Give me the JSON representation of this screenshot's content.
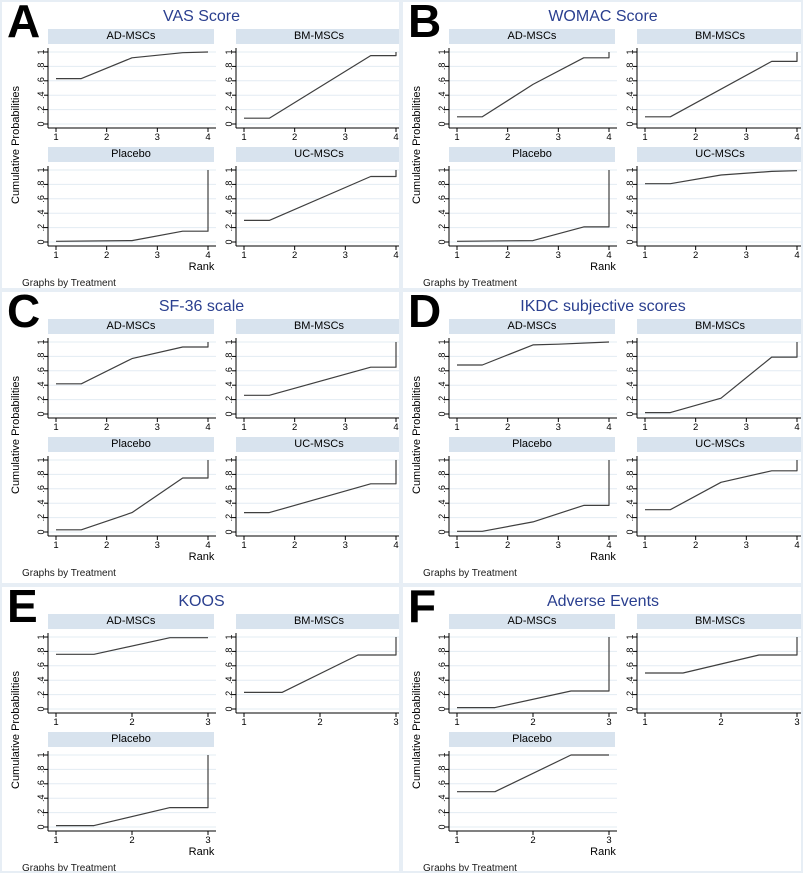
{
  "note": "Graphs by Treatment",
  "axis": {
    "y_label": "Cumulative Probabilities",
    "x_label": "Rank",
    "y_ticks": [
      0,
      0.2,
      0.4,
      0.6,
      0.8,
      1
    ],
    "y_tick_labels": [
      "0",
      ".2",
      ".4",
      ".6",
      ".8",
      "1"
    ],
    "ylim": [
      0,
      1
    ],
    "grid": "horizontal"
  },
  "colors": {
    "title_text": "#2a3f8f",
    "subplot_header_bg": "#d8e3ee",
    "gridline": "#e3ecf3",
    "curve": "#3f3f3f",
    "axis": "#000000",
    "panel_border": "#e7eef5"
  },
  "chart_data": [
    {
      "panel": "A",
      "title": "VAS Score",
      "type": "line",
      "xlabel": "Rank",
      "ylabel": "Cumulative Probabilities",
      "ylim": [
        0,
        1
      ],
      "ranks": [
        1,
        2,
        3,
        4
      ],
      "treatments": [
        {
          "name": "AD-MSCs",
          "points": [
            [
              1,
              0.63
            ],
            [
              1.5,
              0.63
            ],
            [
              2.5,
              0.92
            ],
            [
              3.5,
              0.99
            ],
            [
              4,
              1.0
            ]
          ]
        },
        {
          "name": "BM-MSCs",
          "points": [
            [
              1,
              0.08
            ],
            [
              1.5,
              0.08
            ],
            [
              3.5,
              0.95
            ],
            [
              4,
              0.95
            ],
            [
              4,
              1.0
            ]
          ]
        },
        {
          "name": "Placebo",
          "points": [
            [
              1,
              0.01
            ],
            [
              2.5,
              0.02
            ],
            [
              3.5,
              0.15
            ],
            [
              4,
              0.15
            ],
            [
              4,
              1.0
            ]
          ]
        },
        {
          "name": "UC-MSCs",
          "points": [
            [
              1,
              0.3
            ],
            [
              1.5,
              0.3
            ],
            [
              3.5,
              0.91
            ],
            [
              4,
              0.91
            ],
            [
              4,
              1.0
            ]
          ]
        }
      ]
    },
    {
      "panel": "B",
      "title": "WOMAC Score",
      "type": "line",
      "xlabel": "Rank",
      "ylabel": "Cumulative Probabilities",
      "ylim": [
        0,
        1
      ],
      "ranks": [
        1,
        2,
        3,
        4
      ],
      "treatments": [
        {
          "name": "AD-MSCs",
          "points": [
            [
              1,
              0.1
            ],
            [
              1.5,
              0.1
            ],
            [
              2.5,
              0.55
            ],
            [
              3.5,
              0.92
            ],
            [
              4,
              0.92
            ],
            [
              4,
              1.0
            ]
          ]
        },
        {
          "name": "BM-MSCs",
          "points": [
            [
              1,
              0.1
            ],
            [
              1.5,
              0.1
            ],
            [
              3.5,
              0.87
            ],
            [
              4,
              0.87
            ],
            [
              4,
              1.0
            ]
          ]
        },
        {
          "name": "Placebo",
          "points": [
            [
              1,
              0.01
            ],
            [
              2.5,
              0.02
            ],
            [
              3.5,
              0.21
            ],
            [
              4,
              0.21
            ],
            [
              4,
              1.0
            ]
          ]
        },
        {
          "name": "UC-MSCs",
          "points": [
            [
              1,
              0.81
            ],
            [
              1.5,
              0.81
            ],
            [
              2.5,
              0.93
            ],
            [
              3.5,
              0.98
            ],
            [
              4,
              0.99
            ]
          ]
        }
      ]
    },
    {
      "panel": "C",
      "title": "SF-36 scale",
      "type": "line",
      "xlabel": "Rank",
      "ylabel": "Cumulative Probabilities",
      "ylim": [
        0,
        1
      ],
      "ranks": [
        1,
        2,
        3,
        4
      ],
      "treatments": [
        {
          "name": "AD-MSCs",
          "points": [
            [
              1,
              0.42
            ],
            [
              1.5,
              0.42
            ],
            [
              2.5,
              0.77
            ],
            [
              3.5,
              0.93
            ],
            [
              4,
              0.93
            ],
            [
              4,
              1.0
            ]
          ]
        },
        {
          "name": "BM-MSCs",
          "points": [
            [
              1,
              0.26
            ],
            [
              1.5,
              0.26
            ],
            [
              3.5,
              0.65
            ],
            [
              4,
              0.65
            ],
            [
              4,
              1.0
            ]
          ]
        },
        {
          "name": "Placebo",
          "points": [
            [
              1,
              0.03
            ],
            [
              1.5,
              0.03
            ],
            [
              2.5,
              0.27
            ],
            [
              3.5,
              0.75
            ],
            [
              4,
              0.75
            ],
            [
              4,
              1.0
            ]
          ]
        },
        {
          "name": "UC-MSCs",
          "points": [
            [
              1,
              0.27
            ],
            [
              1.5,
              0.27
            ],
            [
              3.5,
              0.67
            ],
            [
              4,
              0.67
            ],
            [
              4,
              1.0
            ]
          ]
        }
      ]
    },
    {
      "panel": "D",
      "title": "IKDC subjective scores",
      "type": "line",
      "xlabel": "Rank",
      "ylabel": "Cumulative Probabilities",
      "ylim": [
        0,
        1
      ],
      "ranks": [
        1,
        2,
        3,
        4
      ],
      "treatments": [
        {
          "name": "AD-MSCs",
          "points": [
            [
              1,
              0.68
            ],
            [
              1.5,
              0.68
            ],
            [
              2.5,
              0.96
            ],
            [
              3,
              0.97
            ],
            [
              4,
              1.0
            ]
          ]
        },
        {
          "name": "BM-MSCs",
          "points": [
            [
              1,
              0.02
            ],
            [
              1.5,
              0.02
            ],
            [
              2.5,
              0.22
            ],
            [
              3.5,
              0.79
            ],
            [
              4,
              0.79
            ],
            [
              4,
              1.0
            ]
          ]
        },
        {
          "name": "Placebo",
          "points": [
            [
              1,
              0.01
            ],
            [
              1.5,
              0.01
            ],
            [
              2.5,
              0.14
            ],
            [
              3.5,
              0.37
            ],
            [
              4,
              0.37
            ],
            [
              4,
              1.0
            ]
          ]
        },
        {
          "name": "UC-MSCs",
          "points": [
            [
              1,
              0.31
            ],
            [
              1.5,
              0.31
            ],
            [
              2.5,
              0.69
            ],
            [
              3.5,
              0.85
            ],
            [
              4,
              0.85
            ],
            [
              4,
              1.0
            ]
          ]
        }
      ]
    },
    {
      "panel": "E",
      "title": "KOOS",
      "type": "line",
      "xlabel": "Rank",
      "ylabel": "Cumulative Probabilities",
      "ylim": [
        0,
        1
      ],
      "ranks": [
        1,
        2,
        3
      ],
      "treatments": [
        {
          "name": "AD-MSCs",
          "points": [
            [
              1,
              0.76
            ],
            [
              1.5,
              0.76
            ],
            [
              2.5,
              0.99
            ],
            [
              3,
              0.99
            ]
          ]
        },
        {
          "name": "BM-MSCs",
          "points": [
            [
              1,
              0.23
            ],
            [
              1.5,
              0.23
            ],
            [
              2.5,
              0.75
            ],
            [
              3,
              0.75
            ],
            [
              3,
              1.0
            ]
          ]
        },
        {
          "name": "Placebo",
          "points": [
            [
              1,
              0.02
            ],
            [
              1.5,
              0.02
            ],
            [
              2.5,
              0.27
            ],
            [
              3,
              0.27
            ],
            [
              3,
              1.0
            ]
          ]
        }
      ]
    },
    {
      "panel": "F",
      "title": "Adverse Events",
      "type": "line",
      "xlabel": "Rank",
      "ylabel": "Cumulative Probabilities",
      "ylim": [
        0,
        1
      ],
      "ranks": [
        1,
        2,
        3
      ],
      "treatments": [
        {
          "name": "AD-MSCs",
          "points": [
            [
              1,
              0.02
            ],
            [
              1.5,
              0.02
            ],
            [
              2.5,
              0.25
            ],
            [
              3,
              0.25
            ],
            [
              3,
              1.0
            ]
          ]
        },
        {
          "name": "BM-MSCs",
          "points": [
            [
              1,
              0.5
            ],
            [
              1.5,
              0.5
            ],
            [
              2.5,
              0.75
            ],
            [
              3,
              0.75
            ],
            [
              3,
              1.0
            ]
          ]
        },
        {
          "name": "Placebo",
          "points": [
            [
              1,
              0.49
            ],
            [
              1.5,
              0.49
            ],
            [
              2.5,
              1.0
            ],
            [
              3,
              1.0
            ]
          ]
        }
      ]
    }
  ]
}
